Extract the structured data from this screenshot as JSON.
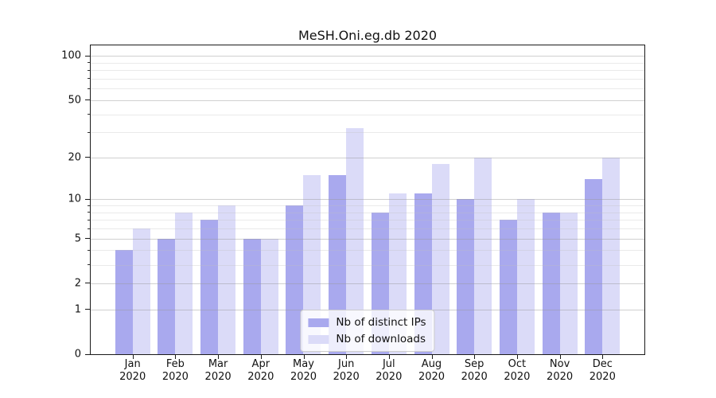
{
  "title": "MeSH.Oni.eg.db 2020",
  "chart_data": {
    "type": "bar",
    "title": "MeSH.Oni.eg.db 2020",
    "year": "2020",
    "categories": [
      "Jan",
      "Feb",
      "Mar",
      "Apr",
      "May",
      "Jun",
      "Jul",
      "Aug",
      "Sep",
      "Oct",
      "Nov",
      "Dec"
    ],
    "series": [
      {
        "name": "Nb of distinct IPs",
        "color": "#a9a9ee",
        "values": [
          4,
          5,
          7,
          5,
          9,
          15,
          8,
          11,
          10,
          7,
          8,
          14
        ]
      },
      {
        "name": "Nb of downloads",
        "color": "#dbdbf8",
        "values": [
          6,
          8,
          9,
          5,
          15,
          32,
          11,
          18,
          20,
          10,
          8,
          20
        ]
      }
    ],
    "xlabel": "",
    "ylabel": "",
    "yscale": "log1p",
    "ylim": [
      0,
      118
    ],
    "yticks": [
      0,
      1,
      2,
      5,
      10,
      20,
      50,
      100
    ],
    "yticks_minor": [
      3,
      4,
      6,
      7,
      8,
      9,
      30,
      40,
      60,
      70,
      80,
      90
    ],
    "grid": "on",
    "legend_position": "bottom-center"
  }
}
